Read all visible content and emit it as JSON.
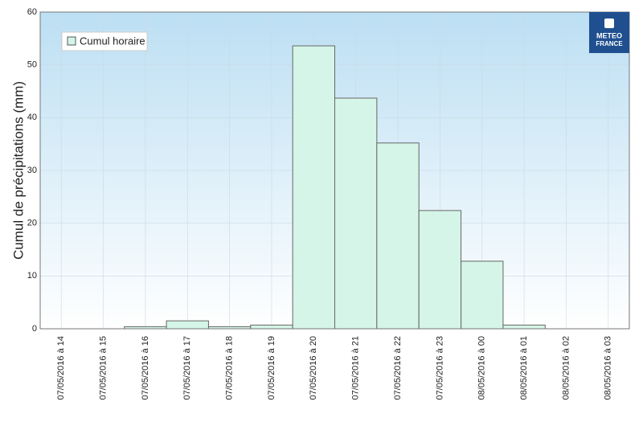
{
  "chart_data": {
    "type": "bar",
    "y_label": "Cumul de précipitations (mm)",
    "categories": [
      "07/05/2016 à 14",
      "07/05/2016 à 15",
      "07/05/2016 à 16",
      "07/05/2016 à 17",
      "07/05/2016 à 18",
      "07/05/2016 à 19",
      "07/05/2016 à 20",
      "07/05/2016 à 21",
      "07/05/2016 à 22",
      "07/05/2016 à 23",
      "08/05/2016 à 00",
      "08/05/2016 à 01",
      "08/05/2016 à 02",
      "08/05/2016 à 03"
    ],
    "series": [
      {
        "name": "Cumul horaire",
        "color": "#d4f5e7",
        "values": [
          0,
          0,
          0.4,
          1.5,
          0.4,
          0.7,
          53.6,
          43.7,
          35.2,
          22.4,
          12.8,
          0.7,
          0,
          0
        ]
      }
    ],
    "ylim": [
      0,
      60
    ],
    "yticks": [
      0,
      10,
      20,
      30,
      40,
      50,
      60
    ],
    "grid": true,
    "legend": "top-left",
    "logo": [
      "METEO",
      "FRANCE"
    ]
  }
}
